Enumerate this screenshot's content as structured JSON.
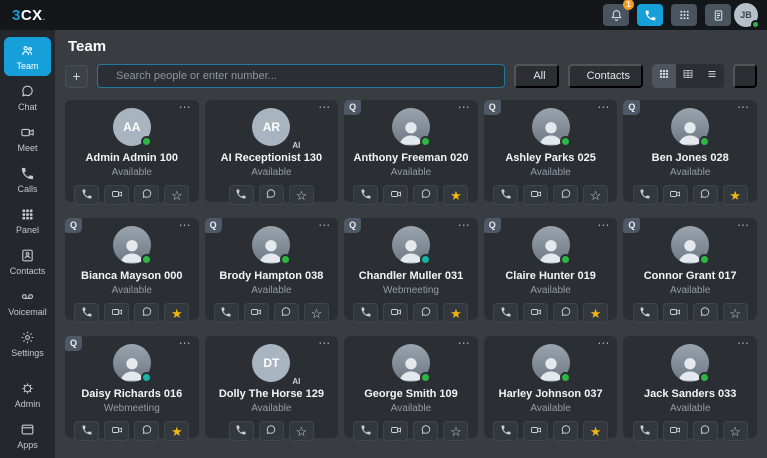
{
  "topbar": {
    "logo": {
      "part1": "3",
      "part2": "CX",
      "suffix": "."
    },
    "actions": [
      {
        "name": "notifications",
        "icon": "bell-icon",
        "badge": "1",
        "active": false
      },
      {
        "name": "phone",
        "icon": "phone-icon",
        "active": true
      },
      {
        "name": "dialpad",
        "icon": "dialpad-icon",
        "active": false
      },
      {
        "name": "notes",
        "icon": "document-icon",
        "active": false
      }
    ],
    "user": {
      "initials": "JB",
      "presence": "available"
    }
  },
  "sidebar": {
    "items": [
      {
        "label": "Team",
        "icon": "team-icon",
        "active": true,
        "section": "top"
      },
      {
        "label": "Chat",
        "icon": "chat-icon",
        "active": false,
        "section": "top"
      },
      {
        "label": "Meet",
        "icon": "meet-icon",
        "active": false,
        "section": "top"
      },
      {
        "label": "Calls",
        "icon": "calls-icon",
        "active": false,
        "section": "top"
      },
      {
        "label": "Panel",
        "icon": "panel-icon",
        "active": false,
        "section": "top"
      },
      {
        "label": "Contacts",
        "icon": "contacts-icon",
        "active": false,
        "section": "top"
      },
      {
        "label": "Voicemail",
        "icon": "voicemail-icon",
        "active": false,
        "section": "top"
      },
      {
        "label": "Settings",
        "icon": "settings-icon",
        "active": false,
        "section": "top"
      },
      {
        "label": "Admin",
        "icon": "admin-icon",
        "active": false,
        "section": "bottom"
      },
      {
        "label": "Apps",
        "icon": "apps-icon",
        "active": false,
        "section": "bottom"
      }
    ]
  },
  "header": {
    "title": "Team"
  },
  "toolbar": {
    "search": {
      "placeholder": "Search people or enter number...",
      "value": "",
      "icon": "search-icon"
    },
    "filter": {
      "label": "All",
      "icon": "filter-icon"
    },
    "contacts": {
      "label": "Contacts",
      "icon": "contact-card-icon"
    },
    "views": [
      {
        "name": "view-grid-large",
        "icon": "grid-icon",
        "active": true
      },
      {
        "name": "view-grid-small",
        "icon": "table-icon",
        "active": false
      },
      {
        "name": "view-list",
        "icon": "list-icon",
        "active": false
      }
    ],
    "settings_icon": "gear-icon"
  },
  "team": {
    "queue_badge_label": "Q",
    "members": [
      {
        "name": "Admin Admin 100",
        "status": "Available",
        "presence": "available",
        "queue": false,
        "avatar": {
          "type": "initials",
          "initials": "AA"
        },
        "ai_label": null,
        "actions": [
          "phone",
          "video",
          "chat"
        ],
        "starred": false
      },
      {
        "name": "AI Receptionist 130",
        "status": "Available",
        "presence": null,
        "queue": false,
        "avatar": {
          "type": "initials",
          "initials": "AR"
        },
        "ai_label": "AI",
        "actions": [
          "phone",
          "chat"
        ],
        "starred": false
      },
      {
        "name": "Anthony Freeman 020",
        "status": "Available",
        "presence": "available",
        "queue": true,
        "avatar": {
          "type": "photo"
        },
        "ai_label": null,
        "actions": [
          "phone",
          "video",
          "chat"
        ],
        "starred": true
      },
      {
        "name": "Ashley Parks 025",
        "status": "Available",
        "presence": "available",
        "queue": true,
        "avatar": {
          "type": "photo"
        },
        "ai_label": null,
        "actions": [
          "phone",
          "video",
          "chat"
        ],
        "starred": false
      },
      {
        "name": "Ben Jones 028",
        "status": "Available",
        "presence": "available",
        "queue": true,
        "avatar": {
          "type": "photo"
        },
        "ai_label": null,
        "actions": [
          "phone",
          "video",
          "chat"
        ],
        "starred": true
      },
      {
        "name": "Bianca Mayson 000",
        "status": "Available",
        "presence": "available",
        "queue": true,
        "avatar": {
          "type": "photo"
        },
        "ai_label": null,
        "actions": [
          "phone",
          "video",
          "chat"
        ],
        "starred": true
      },
      {
        "name": "Brody Hampton 038",
        "status": "Available",
        "presence": "available",
        "queue": true,
        "avatar": {
          "type": "photo"
        },
        "ai_label": null,
        "actions": [
          "phone",
          "video",
          "chat"
        ],
        "starred": false
      },
      {
        "name": "Chandler Muller 031",
        "status": "Webmeeting",
        "presence": "webmeeting",
        "queue": true,
        "avatar": {
          "type": "photo"
        },
        "ai_label": null,
        "actions": [
          "phone",
          "video",
          "chat"
        ],
        "starred": true
      },
      {
        "name": "Claire Hunter 019",
        "status": "Available",
        "presence": "available",
        "queue": true,
        "avatar": {
          "type": "photo"
        },
        "ai_label": null,
        "actions": [
          "phone",
          "video",
          "chat"
        ],
        "starred": true
      },
      {
        "name": "Connor Grant 017",
        "status": "Available",
        "presence": "available",
        "queue": true,
        "avatar": {
          "type": "photo"
        },
        "ai_label": null,
        "actions": [
          "phone",
          "video",
          "chat"
        ],
        "starred": false
      },
      {
        "name": "Daisy Richards 016",
        "status": "Webmeeting",
        "presence": "webmeeting",
        "queue": true,
        "avatar": {
          "type": "photo"
        },
        "ai_label": null,
        "actions": [
          "phone",
          "video",
          "chat"
        ],
        "starred": true
      },
      {
        "name": "Dolly The Horse 129",
        "status": "Available",
        "presence": null,
        "queue": false,
        "avatar": {
          "type": "initials",
          "initials": "DT"
        },
        "ai_label": "AI",
        "actions": [
          "phone",
          "chat"
        ],
        "starred": false
      },
      {
        "name": "George Smith 109",
        "status": "Available",
        "presence": "available",
        "queue": false,
        "avatar": {
          "type": "photo"
        },
        "ai_label": null,
        "actions": [
          "phone",
          "video",
          "chat"
        ],
        "starred": false
      },
      {
        "name": "Harley Johnson 037",
        "status": "Available",
        "presence": "available",
        "queue": false,
        "avatar": {
          "type": "photo"
        },
        "ai_label": null,
        "actions": [
          "phone",
          "video",
          "chat"
        ],
        "starred": true
      },
      {
        "name": "Jack Sanders 033",
        "status": "Available",
        "presence": "available",
        "queue": false,
        "avatar": {
          "type": "photo"
        },
        "ai_label": null,
        "actions": [
          "phone",
          "video",
          "chat"
        ],
        "starred": false
      }
    ]
  },
  "glyphs": {
    "plus": "+",
    "ellipsis": "⋯",
    "star_filled": "★",
    "star_outline": "☆"
  },
  "colors": {
    "accent_blue": "#179fd9",
    "badge_orange": "#f59b22",
    "star_yellow": "#f1b70c",
    "presence_available": "#2db742",
    "presence_webmeeting": "#16b3a6"
  }
}
